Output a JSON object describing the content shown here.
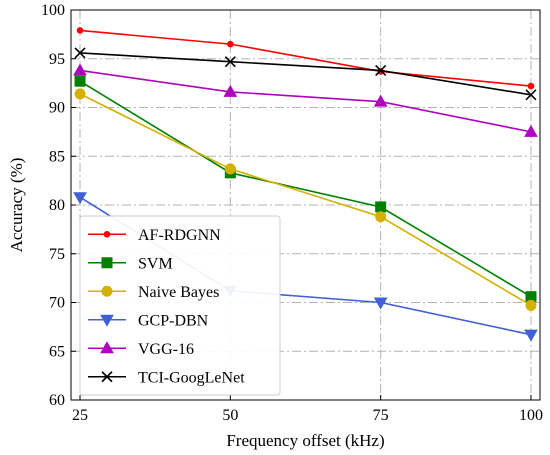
{
  "chart_data": {
    "type": "line",
    "xlabel": "Frequency offset (kHz)",
    "ylabel": "Accuracy (%)",
    "x": [
      25,
      50,
      75,
      100
    ],
    "xticks": [
      25,
      50,
      75,
      100
    ],
    "xlim": [
      23.5,
      101.5
    ],
    "yticks": [
      60,
      65,
      70,
      75,
      80,
      85,
      90,
      95,
      100
    ],
    "ylim": [
      60,
      100
    ],
    "grid": true,
    "legend_position": "lower-left",
    "series": [
      {
        "name": "AF-RDGNN",
        "color": "#ff0000",
        "marker": "dot",
        "values": [
          97.9,
          96.5,
          93.7,
          92.2
        ]
      },
      {
        "name": "SVM",
        "color": "#007f00",
        "marker": "square",
        "values": [
          92.7,
          83.3,
          79.8,
          70.6
        ]
      },
      {
        "name": "Naive Bayes",
        "color": "#d4b000",
        "marker": "circle",
        "values": [
          91.4,
          83.7,
          78.8,
          69.7
        ]
      },
      {
        "name": "GCP-DBN",
        "color": "#4060d8",
        "marker": "triangle-down",
        "values": [
          80.8,
          71.2,
          70.0,
          66.7
        ]
      },
      {
        "name": "VGG-16",
        "color": "#b000c0",
        "marker": "triangle-up",
        "values": [
          93.8,
          91.6,
          90.6,
          87.5
        ]
      },
      {
        "name": "TCI-GoogLeNet",
        "color": "#000000",
        "marker": "x",
        "values": [
          95.6,
          94.7,
          93.8,
          91.3
        ]
      }
    ]
  }
}
